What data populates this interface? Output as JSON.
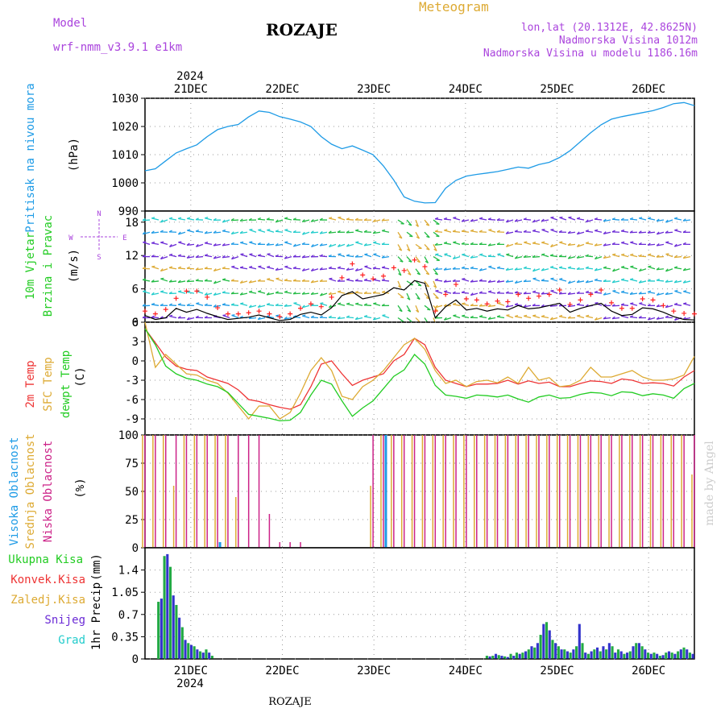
{
  "header": {
    "model_label": "Model",
    "model_name": "wrf-nmm_v3.9.1 e1km",
    "station": "ROZAJE",
    "title": "Meteogram",
    "lonlat": "lon,lat (20.1312E, 42.8625N)",
    "altitude": "Nadmorska Visina 1012m",
    "model_altitude": "Nadmorska Visina u modelu 1186.16m"
  },
  "footer": {
    "station": "ROZAJE",
    "watermark": "made by Angel"
  },
  "colors": {
    "pressure": "#1e9be6",
    "wind_barbs": "#6b2bd6",
    "wind_speed": "#000000",
    "wind_gust": "#ff2020",
    "temp2m": "#ee3333",
    "sfc_temp": "#ddaa33",
    "dewpoint": "#22cc22",
    "cloud_high": "#1e9be6",
    "cloud_mid": "#ddaa33",
    "cloud_low": "#cc2288",
    "precip_total": "#22aa44",
    "precip_snow": "#3333cc",
    "precip_grad": "#22cccc",
    "label_blue": "#1e9be6",
    "label_green": "#22cc22",
    "label_red": "#ee3333",
    "label_orange": "#ddaa33",
    "label_magenta": "#cc2288",
    "label_purple": "#aa44dd"
  },
  "chart_data": [
    {
      "type": "line",
      "panel": "pressure",
      "ylabel_left": "Pritisak na nivou mora",
      "unit": "(hPa)",
      "ylim": [
        990,
        1030
      ],
      "yticks": [
        990,
        1000,
        1010,
        1020,
        1030
      ],
      "x_day_start": 20.5,
      "x_day_end": 26.5,
      "xticks": [
        "21DEC",
        "22DEC",
        "23DEC",
        "24DEC",
        "25DEC",
        "26DEC"
      ],
      "year_label": "2024",
      "grid": true,
      "series": [
        {
          "values": [
            1004.3,
            1005.0,
            1007.8,
            1010.6,
            1012.1,
            1013.5,
            1016.4,
            1018.9,
            1020.0,
            1020.7,
            1023.4,
            1025.5,
            1025.0,
            1023.5,
            1022.6,
            1021.6,
            1020.0,
            1016.4,
            1013.7,
            1012.1,
            1013.1,
            1011.6,
            1010.0,
            1006.0,
            1001.0,
            995.0,
            993.5,
            992.9,
            993.0,
            998.1,
            1000.9,
            1002.4,
            1003.0,
            1003.5,
            1004.0,
            1004.8,
            1005.6,
            1005.2,
            1006.5,
            1007.3,
            1009.0,
            1011.4,
            1014.6,
            1017.8,
            1020.6,
            1022.6,
            1023.5,
            1024.2,
            1024.9,
            1025.6,
            1026.7,
            1028.1,
            1028.5,
            1027.4
          ]
        }
      ]
    },
    {
      "type": "line",
      "panel": "wind",
      "ylabel_left": [
        "10m Vjetar",
        "Brzina i Pravac"
      ],
      "unit": "(m/s)",
      "legend_compass": {
        "n": "N",
        "s": "S",
        "w": "W",
        "e": "E"
      },
      "ylim": [
        0,
        20
      ],
      "yticks": [
        0,
        6,
        12,
        18
      ],
      "grid": true,
      "series": [
        {
          "style": "line",
          "values": [
            1.2,
            0.5,
            0.8,
            2.5,
            1.8,
            2.3,
            1.6,
            1.0,
            0.5,
            0.7,
            0.9,
            1.3,
            0.8,
            0.3,
            0.5,
            1.4,
            1.8,
            1.3,
            2.6,
            4.8,
            5.5,
            4.2,
            4.6,
            5.0,
            6.2,
            5.8,
            7.5,
            7.0,
            0.8,
            2.8,
            4.0,
            2.2,
            2.5,
            2.0,
            2.4,
            2.2,
            3.0,
            2.4,
            2.6,
            3.0,
            3.4,
            1.8,
            2.5,
            3.0,
            3.4,
            2.0,
            1.2,
            1.4,
            2.6,
            2.4,
            1.8,
            1.0,
            0.5,
            0.4
          ]
        },
        {
          "style": "markers",
          "values": [
            2.0,
            1.5,
            2.3,
            4.3,
            5.6,
            5.6,
            4.5,
            2.6,
            1.5,
            1.5,
            1.7,
            2.0,
            1.5,
            1.0,
            1.5,
            2.5,
            3.3,
            2.8,
            4.5,
            8.0,
            10.5,
            8.5,
            7.8,
            8.3,
            9.8,
            9.3,
            11.2,
            10.0,
            2.0,
            5.0,
            6.8,
            4.2,
            4.0,
            3.3,
            3.8,
            3.7,
            5.0,
            4.3,
            4.7,
            5.0,
            5.8,
            3.2,
            4.0,
            5.0,
            5.8,
            3.5,
            2.5,
            2.5,
            4.2,
            4.0,
            3.0,
            2.0,
            1.6,
            1.5
          ]
        }
      ]
    },
    {
      "type": "line",
      "panel": "temperature",
      "ylabel_left": [
        "2m Temp",
        "SFC Temp",
        "dewpt Temp"
      ],
      "unit": "(C)",
      "ylim": [
        -11.5,
        6
      ],
      "yticks": [
        -9,
        -6,
        -3,
        0,
        3,
        6
      ],
      "grid": true,
      "series": [
        {
          "name": "2m Temp",
          "values": [
            5.0,
            2.8,
            0.6,
            -0.8,
            -1.3,
            -1.5,
            -2.5,
            -3.0,
            -3.5,
            -4.5,
            -6.0,
            -6.3,
            -6.8,
            -7.2,
            -7.5,
            -6.8,
            -4.0,
            -0.5,
            0.0,
            -2.0,
            -3.8,
            -3.0,
            -2.5,
            -2.0,
            0.0,
            1.0,
            3.5,
            2.5,
            -1.0,
            -3.0,
            -3.5,
            -4.0,
            -3.6,
            -3.6,
            -3.5,
            -3.0,
            -3.6,
            -3.1,
            -3.5,
            -3.3,
            -4.0,
            -4.0,
            -3.5,
            -3.1,
            -3.2,
            -3.5,
            -2.8,
            -3.0,
            -3.5,
            -3.4,
            -3.5,
            -3.9,
            -2.5,
            -1.5
          ]
        },
        {
          "name": "SFC Temp",
          "values": [
            6.0,
            -1.0,
            1.0,
            -0.5,
            -2.0,
            -2.2,
            -3.0,
            -3.5,
            -5.0,
            -7.0,
            -9.0,
            -7.0,
            -7.0,
            -9.0,
            -8.0,
            -5.0,
            -1.5,
            0.5,
            -1.5,
            -5.5,
            -6.0,
            -4.0,
            -3.0,
            -1.5,
            0.5,
            2.5,
            3.5,
            1.8,
            -1.5,
            -3.5,
            -3.0,
            -4.0,
            -3.2,
            -3.0,
            -3.4,
            -2.5,
            -3.5,
            -1.0,
            -3.0,
            -2.6,
            -4.0,
            -3.8,
            -3.0,
            -1.0,
            -2.5,
            -2.5,
            -2.0,
            -1.5,
            -2.5,
            -3.0,
            -3.0,
            -2.8,
            -2.2,
            0.7
          ]
        },
        {
          "name": "dewpt Temp",
          "values": [
            5.0,
            2.5,
            -0.8,
            -2.0,
            -2.7,
            -3.0,
            -3.6,
            -4.0,
            -4.9,
            -6.6,
            -8.3,
            -8.6,
            -8.9,
            -9.3,
            -9.2,
            -8.0,
            -5.3,
            -3.0,
            -3.6,
            -6.2,
            -8.6,
            -7.3,
            -6.2,
            -4.3,
            -2.4,
            -1.4,
            1.0,
            -0.5,
            -3.8,
            -5.3,
            -5.5,
            -5.8,
            -5.3,
            -5.4,
            -5.6,
            -5.3,
            -5.9,
            -6.4,
            -5.6,
            -5.3,
            -5.8,
            -5.7,
            -5.2,
            -4.9,
            -5.0,
            -5.4,
            -4.8,
            -4.9,
            -5.4,
            -5.1,
            -5.3,
            -5.8,
            -4.3,
            -3.5
          ]
        }
      ]
    },
    {
      "type": "bar",
      "panel": "clouds",
      "ylabel_left": [
        "Visoka Oblacnost",
        "Srednja Oblacnost",
        "Niska Oblacnost"
      ],
      "unit": "(%)",
      "ylim": [
        0,
        100
      ],
      "yticks": [
        0,
        25,
        50,
        75,
        100
      ],
      "grid": true,
      "series": [
        {
          "name": "Visoka Oblacnost",
          "values": [
            0,
            0,
            0,
            0,
            0,
            0,
            0,
            5,
            0,
            0,
            0,
            0,
            0,
            0,
            0,
            0,
            0,
            0,
            0,
            0,
            0,
            0,
            0,
            100,
            0,
            0,
            0,
            0,
            0,
            0,
            0,
            0,
            0,
            0,
            0,
            0,
            0,
            0,
            0,
            0,
            0,
            0,
            0,
            0,
            0,
            0,
            0,
            0,
            0,
            0,
            0,
            0,
            0,
            0
          ]
        },
        {
          "name": "Srednja Oblacnost",
          "values": [
            100,
            100,
            100,
            55,
            100,
            100,
            100,
            100,
            100,
            45,
            0,
            0,
            0,
            0,
            0,
            0,
            0,
            0,
            0,
            0,
            0,
            0,
            55,
            100,
            100,
            100,
            100,
            100,
            100,
            100,
            100,
            100,
            100,
            100,
            100,
            100,
            100,
            100,
            100,
            100,
            100,
            100,
            100,
            100,
            100,
            100,
            100,
            100,
            100,
            100,
            100,
            100,
            100,
            65
          ]
        },
        {
          "name": "Niska Oblacnost",
          "values": [
            100,
            100,
            100,
            100,
            100,
            100,
            100,
            100,
            100,
            100,
            100,
            100,
            30,
            5,
            5,
            5,
            0,
            0,
            0,
            0,
            0,
            0,
            100,
            100,
            100,
            100,
            100,
            100,
            100,
            100,
            100,
            100,
            100,
            100,
            100,
            100,
            100,
            100,
            100,
            100,
            100,
            100,
            100,
            100,
            100,
            100,
            100,
            100,
            100,
            100,
            100,
            100,
            100,
            100
          ]
        }
      ]
    },
    {
      "type": "bar",
      "panel": "precipitation",
      "legend": [
        "Ukupna Kisa",
        "Konvek.Kisa",
        "Zaledj.Kisa",
        "Snijeg",
        "Grad"
      ],
      "ylabel_left": "1hr Precip",
      "unit": "(mm)",
      "ylim": [
        0,
        1.75
      ],
      "yticks": [
        0,
        0.35,
        0.7,
        1.05,
        1.4
      ],
      "grid": true,
      "series": [
        {
          "name": "Ukupna Kisa",
          "values": [
            0,
            0,
            0,
            0,
            0.9,
            0.95,
            1.62,
            1.65,
            1.45,
            1.0,
            0.85,
            0.65,
            0.5,
            0.3,
            0.25,
            0.22,
            0.2,
            0.15,
            0.12,
            0.1,
            0.15,
            0.1,
            0.05,
            0,
            0,
            0,
            0,
            0,
            0,
            0,
            0,
            0,
            0,
            0,
            0,
            0,
            0,
            0,
            0,
            0,
            0,
            0,
            0,
            0,
            0,
            0,
            0,
            0,
            0,
            0,
            0,
            0,
            0,
            0,
            0,
            0,
            0,
            0,
            0,
            0,
            0,
            0,
            0,
            0,
            0,
            0,
            0,
            0,
            0,
            0,
            0,
            0,
            0,
            0,
            0,
            0,
            0,
            0,
            0,
            0,
            0,
            0,
            0,
            0,
            0,
            0,
            0,
            0,
            0,
            0,
            0,
            0,
            0,
            0,
            0,
            0,
            0,
            0,
            0,
            0,
            0,
            0,
            0,
            0,
            0,
            0,
            0,
            0,
            0,
            0,
            0,
            0,
            0,
            0,
            0.05,
            0.04,
            0.05,
            0.08,
            0.06,
            0.05,
            0.04,
            0.03,
            0.08,
            0.05,
            0.1,
            0.08,
            0.1,
            0.12,
            0.15,
            0.2,
            0.18,
            0.25,
            0.38,
            0.55,
            0.58,
            0.45,
            0.3,
            0.25,
            0.2,
            0.15,
            0.15,
            0.12,
            0.1,
            0.15,
            0.2,
            0.55,
            0.25,
            0.1,
            0.08,
            0.12,
            0.15,
            0.18,
            0.12,
            0.2,
            0.15,
            0.25,
            0.2,
            0.1,
            0.15,
            0.12,
            0.08,
            0.1,
            0.12,
            0.2,
            0.25,
            0.25,
            0.2,
            0.15,
            0.1,
            0.08,
            0.1,
            0.08,
            0.05,
            0.06,
            0.1,
            0.12,
            0.1,
            0.08,
            0.12,
            0.15,
            0.18,
            0.15,
            0.1,
            0.08
          ]
        }
      ]
    }
  ]
}
